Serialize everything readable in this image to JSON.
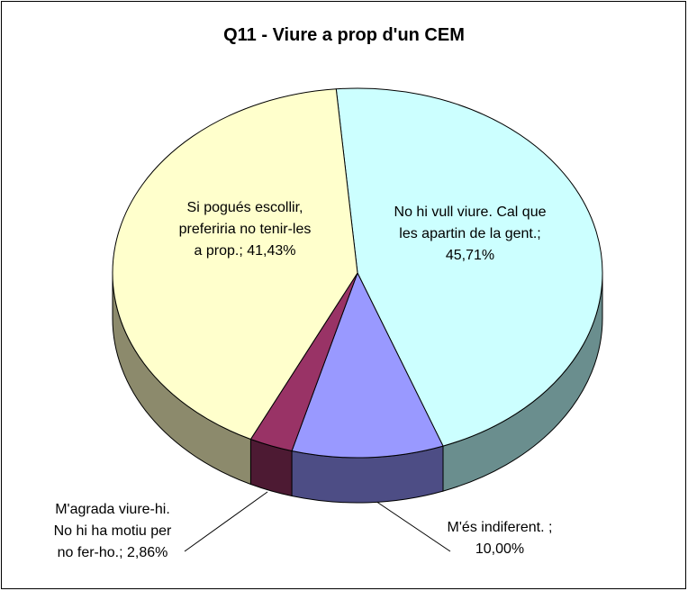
{
  "chart_data": {
    "type": "pie3d",
    "title": "Q11 - Viure a prop d'un CEM",
    "categories": [
      "No hi vull viure. Cal que les apartin de la gent.",
      "M'és indiferent.",
      "M'agrada viure-hi. No hi ha motiu per no fer-ho.",
      "Si pogués escollir, preferiria no tenir-les a prop."
    ],
    "values": [
      45.71,
      10.0,
      2.86,
      41.43
    ],
    "value_labels": [
      "No hi vull viure. Cal que les apartin de la gent.; 45,71%",
      "M'és indiferent. ; 10,00%",
      "M'agrada viure-hi. No hi ha motiu per no fer-ho.; 2,86%",
      "Si pogués escollir, preferiria no tenir-les a prop.; 41,43%"
    ],
    "colors": [
      "#ccffff",
      "#9999ff",
      "#993366",
      "#ffffcc"
    ],
    "side_colors": [
      "#6a8e8e",
      "#4d4d85",
      "#4d1a33",
      "#8c8a6c"
    ]
  }
}
